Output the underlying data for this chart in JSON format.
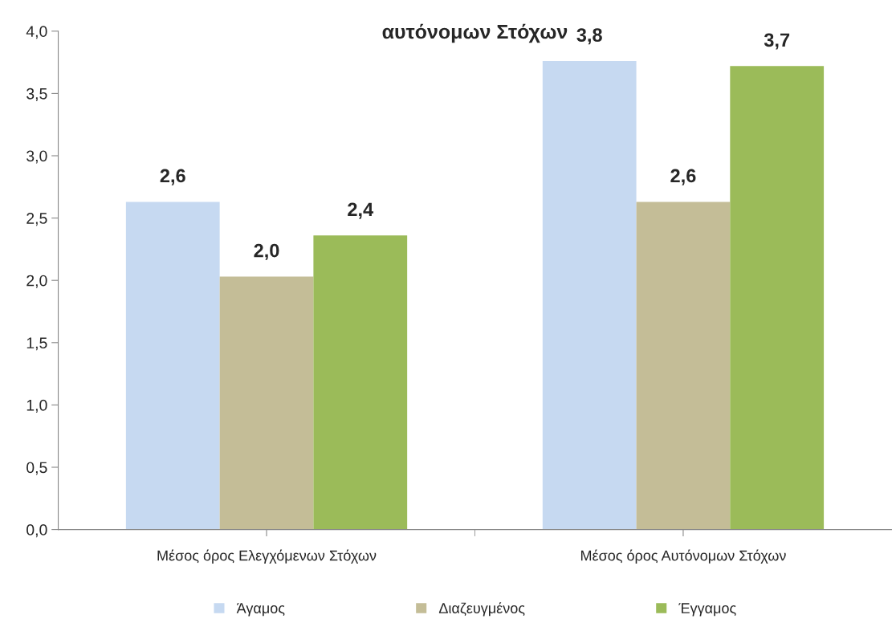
{
  "chart_data": {
    "type": "bar",
    "title": "αυτόνομων Στόχων",
    "categories": [
      "Μέσος όρος Ελεγχόμενων Στόχων",
      "Μέσος όρος Αυτόνομων Στόχων"
    ],
    "series": [
      {
        "name": "Άγαμος",
        "color": "#c6d9f1",
        "values": [
          2.63,
          3.76
        ],
        "value_labels": [
          "2,6",
          "3,8"
        ]
      },
      {
        "name": "Διαζευγμένος",
        "color": "#c4bd97",
        "values": [
          2.03,
          2.63
        ],
        "value_labels": [
          "2,0",
          "2,6"
        ]
      },
      {
        "name": "Έγγαμος",
        "color": "#9bbb59",
        "values": [
          2.36,
          3.72
        ],
        "value_labels": [
          "2,4",
          "3,7"
        ]
      }
    ],
    "ylim": [
      0,
      4
    ],
    "yticks": [
      {
        "value": 0,
        "label": "0,0"
      },
      {
        "value": 0.5,
        "label": "0,5"
      },
      {
        "value": 1,
        "label": "1,0"
      },
      {
        "value": 1.5,
        "label": "1,5"
      },
      {
        "value": 2,
        "label": "2,0"
      },
      {
        "value": 2.5,
        "label": "2,5"
      },
      {
        "value": 3,
        "label": "3,0"
      },
      {
        "value": 3.5,
        "label": "3,5"
      },
      {
        "value": 4,
        "label": "4,0"
      }
    ],
    "grid": false,
    "legend": "bottom"
  }
}
